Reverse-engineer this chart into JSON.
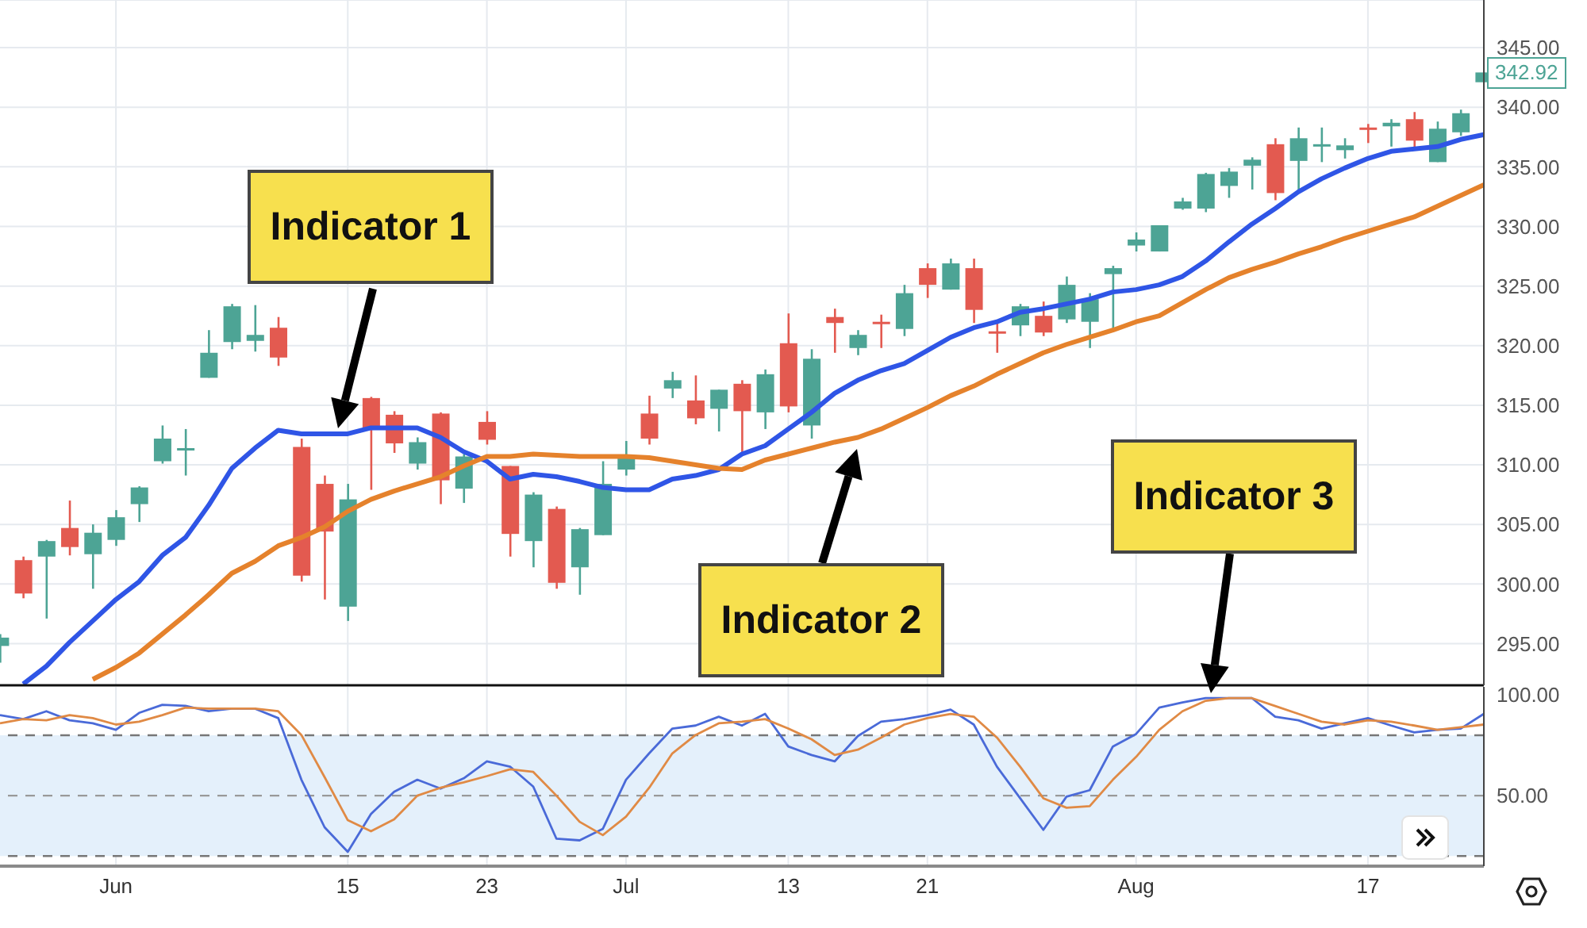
{
  "chart_data": [
    {
      "type": "candlestick",
      "categories": [
        null,
        null,
        null,
        null,
        null,
        null,
        null,
        null,
        null,
        null,
        null,
        null,
        null,
        null,
        null,
        null,
        null,
        null,
        null,
        null,
        null,
        null,
        null,
        null,
        null,
        null,
        null,
        null,
        null,
        null,
        null,
        null,
        null,
        null,
        null,
        null,
        null,
        null,
        null,
        null,
        null,
        null,
        null,
        null,
        null,
        null,
        null,
        null,
        null,
        null,
        null,
        null,
        null,
        null,
        null,
        null,
        null,
        null,
        null,
        null,
        null,
        null,
        null,
        null,
        null
      ],
      "ohlc": [
        [
          294.8,
          295.8,
          293.4,
          295.5
        ],
        [
          302.0,
          302.3,
          298.8,
          299.2
        ],
        [
          302.3,
          303.7,
          297.1,
          303.6
        ],
        [
          304.7,
          307.0,
          302.4,
          303.1
        ],
        [
          302.5,
          305.0,
          299.6,
          304.3
        ],
        [
          303.7,
          306.2,
          303.2,
          305.6
        ],
        [
          306.7,
          308.2,
          305.2,
          308.1
        ],
        [
          310.3,
          313.3,
          310.1,
          312.2
        ],
        [
          311.2,
          313.0,
          309.1,
          311.4
        ],
        [
          317.3,
          321.3,
          317.3,
          319.4
        ],
        [
          320.3,
          323.5,
          319.7,
          323.3
        ],
        [
          320.4,
          323.4,
          319.5,
          320.9
        ],
        [
          321.5,
          322.4,
          318.3,
          319.0
        ],
        [
          311.5,
          312.2,
          300.2,
          300.7
        ],
        [
          308.4,
          309.1,
          298.7,
          304.4
        ],
        [
          298.1,
          308.4,
          296.9,
          307.1
        ],
        [
          315.6,
          315.7,
          307.9,
          313.0
        ],
        [
          314.2,
          314.5,
          311.0,
          311.8
        ],
        [
          310.1,
          312.3,
          309.6,
          311.9
        ],
        [
          314.3,
          314.4,
          306.7,
          308.7
        ],
        [
          308.0,
          310.9,
          306.8,
          310.7
        ],
        [
          313.6,
          314.5,
          311.7,
          312.1
        ],
        [
          309.9,
          309.9,
          302.3,
          304.2
        ],
        [
          303.6,
          307.7,
          301.4,
          307.5
        ],
        [
          306.3,
          306.5,
          299.6,
          300.1
        ],
        [
          301.4,
          304.7,
          299.1,
          304.6
        ],
        [
          304.1,
          310.3,
          304.1,
          308.4
        ],
        [
          309.6,
          312.0,
          309.1,
          310.6
        ],
        [
          314.3,
          315.8,
          311.7,
          312.2
        ],
        [
          316.4,
          317.8,
          315.6,
          317.1
        ],
        [
          315.4,
          317.5,
          313.4,
          313.9
        ],
        [
          314.7,
          316.3,
          312.8,
          316.3
        ],
        [
          316.8,
          317.1,
          311.0,
          314.5
        ],
        [
          314.4,
          318.0,
          313.0,
          317.6
        ],
        [
          320.2,
          322.7,
          314.4,
          314.9
        ],
        [
          313.3,
          319.7,
          312.2,
          318.9
        ],
        [
          322.4,
          323.1,
          319.4,
          321.9
        ],
        [
          319.8,
          321.3,
          319.2,
          320.9
        ],
        [
          322.0,
          322.6,
          319.8,
          321.8
        ],
        [
          321.4,
          325.1,
          320.8,
          324.4
        ],
        [
          326.5,
          326.9,
          324.0,
          325.1
        ],
        [
          324.7,
          327.3,
          324.7,
          326.9
        ],
        [
          326.5,
          327.3,
          321.9,
          323.0
        ],
        [
          321.2,
          321.9,
          319.4,
          321.0
        ],
        [
          321.7,
          323.5,
          320.8,
          323.3
        ],
        [
          322.5,
          323.7,
          320.8,
          321.1
        ],
        [
          322.2,
          325.8,
          321.9,
          325.1
        ],
        [
          322.0,
          324.4,
          319.8,
          323.9
        ],
        [
          326.0,
          326.7,
          321.4,
          326.5
        ],
        [
          328.4,
          329.5,
          327.9,
          328.9
        ],
        [
          327.9,
          330.1,
          327.9,
          330.1
        ],
        [
          331.5,
          332.4,
          331.4,
          332.1
        ],
        [
          331.5,
          334.5,
          331.2,
          334.4
        ],
        [
          333.4,
          334.9,
          332.4,
          334.6
        ],
        [
          335.1,
          335.8,
          333.1,
          335.6
        ],
        [
          336.9,
          337.4,
          332.2,
          332.8
        ],
        [
          335.5,
          338.3,
          333.0,
          337.4
        ],
        [
          336.7,
          338.3,
          335.4,
          336.9
        ],
        [
          336.4,
          337.4,
          335.7,
          336.8
        ],
        [
          338.3,
          338.6,
          337.0,
          338.1
        ],
        [
          338.4,
          339.0,
          336.7,
          338.7
        ],
        [
          339.0,
          339.6,
          336.6,
          337.2
        ],
        [
          335.4,
          338.8,
          335.4,
          338.2
        ],
        [
          337.9,
          339.8,
          337.6,
          339.5
        ],
        [
          342.1,
          342.92,
          342.1,
          342.92
        ]
      ],
      "colors": [
        "#4da495",
        "#e35a50",
        "#4da495",
        "#e35a50",
        "#4da495",
        "#4da495",
        "#4da495",
        "#4da495",
        "#4da495",
        "#4da495",
        "#4da495",
        "#4da495",
        "#e35a50",
        "#e35a50",
        "#e35a50",
        "#4da495",
        "#e35a50",
        "#e35a50",
        "#4da495",
        "#e35a50",
        "#4da495",
        "#e35a50",
        "#e35a50",
        "#4da495",
        "#e35a50",
        "#4da495",
        "#4da495",
        "#4da495",
        "#e35a50",
        "#4da495",
        "#e35a50",
        "#4da495",
        "#e35a50",
        "#4da495",
        "#e35a50",
        "#4da495",
        "#e35a50",
        "#4da495",
        "#e35a50",
        "#4da495",
        "#e35a50",
        "#4da495",
        "#e35a50",
        "#e35a50",
        "#4da495",
        "#e35a50",
        "#4da495",
        "#4da495",
        "#4da495",
        "#4da495",
        "#4da495",
        "#4da495",
        "#4da495",
        "#4da495",
        "#4da495",
        "#e35a50",
        "#4da495",
        "#4da495",
        "#4da495",
        "#e35a50",
        "#4da495",
        "#e35a50",
        "#4da495",
        "#4da495",
        "#4da495"
      ],
      "series": [
        {
          "type": "line",
          "color": "#2f55e6",
          "values": [
            null,
            291.6,
            293.1,
            295.1,
            296.9,
            298.7,
            300.2,
            302.4,
            303.9,
            306.6,
            309.7,
            311.4,
            312.9,
            312.6,
            312.6,
            312.6,
            313.1,
            313.1,
            313.1,
            312.3,
            311.1,
            310.3,
            308.8,
            309.2,
            309.0,
            308.6,
            308.1,
            307.9,
            307.9,
            308.8,
            309.1,
            309.6,
            310.9,
            311.6,
            313.0,
            314.4,
            316.0,
            317.1,
            317.9,
            318.5,
            319.6,
            320.7,
            321.5,
            322.0,
            322.8,
            323.1,
            323.5,
            323.9,
            324.5,
            324.7,
            325.1,
            325.8,
            327.1,
            328.7,
            330.2,
            331.5,
            332.9,
            334.0,
            334.9,
            335.7,
            336.3,
            336.5,
            336.7,
            337.3,
            337.7
          ]
        },
        {
          "type": "line",
          "color": "#e5822c",
          "values": [
            null,
            null,
            null,
            null,
            292.0,
            293.0,
            294.2,
            295.8,
            297.4,
            299.1,
            300.9,
            301.9,
            303.2,
            303.9,
            304.8,
            306.1,
            307.1,
            307.8,
            308.4,
            309.0,
            309.9,
            310.7,
            310.7,
            310.9,
            310.8,
            310.7,
            310.7,
            310.7,
            310.6,
            310.3,
            310.0,
            309.7,
            309.6,
            310.4,
            310.9,
            311.4,
            311.9,
            312.3,
            313.0,
            313.9,
            314.8,
            315.8,
            316.6,
            317.6,
            318.5,
            319.4,
            320.1,
            320.7,
            321.3,
            322.0,
            322.5,
            323.6,
            324.7,
            325.7,
            326.4,
            327.0,
            327.7,
            328.3,
            329.0,
            329.6,
            330.2,
            330.8,
            331.7,
            332.6,
            333.5
          ]
        }
      ],
      "ylim": [
        291.5,
        349
      ],
      "yticks": [
        {
          "value": 295,
          "label": "295.00"
        },
        {
          "value": 300,
          "label": "300.00"
        },
        {
          "value": 305,
          "label": "305.00"
        },
        {
          "value": 310,
          "label": "310.00"
        },
        {
          "value": 315,
          "label": "315.00"
        },
        {
          "value": 320,
          "label": "320.00"
        },
        {
          "value": 325,
          "label": "325.00"
        },
        {
          "value": 330,
          "label": "330.00"
        },
        {
          "value": 335,
          "label": "335.00"
        },
        {
          "value": 340,
          "label": "340.00"
        },
        {
          "value": 345,
          "label": "345.00"
        }
      ],
      "grid": true,
      "tick_labels": "y",
      "annotations": [
        "Indicator 1",
        "Indicator 2",
        "Indicator 3",
        "342.92"
      ]
    },
    {
      "type": "line",
      "categories": [
        null,
        null,
        null,
        null,
        null,
        "Jun",
        null,
        null,
        null,
        null,
        null,
        null,
        null,
        null,
        null,
        "15",
        null,
        null,
        null,
        null,
        null,
        "23",
        null,
        null,
        null,
        null,
        null,
        "Jul",
        null,
        null,
        null,
        null,
        null,
        null,
        "13",
        null,
        null,
        null,
        null,
        null,
        "21",
        null,
        null,
        null,
        null,
        null,
        null,
        null,
        null,
        "Aug",
        null,
        null,
        null,
        null,
        null,
        null,
        null,
        null,
        null,
        "17",
        null,
        null,
        null,
        null,
        null
      ],
      "series": [
        {
          "color": "#4a6ad8",
          "values": [
            90.0,
            88.0,
            91.9,
            87.4,
            85.9,
            82.7,
            91.1,
            95.1,
            94.6,
            91.9,
            93.2,
            93.2,
            88.5,
            57.9,
            34.3,
            22.1,
            40.9,
            51.9,
            57.9,
            53.5,
            58.6,
            67.0,
            64.4,
            54.5,
            28.6,
            27.8,
            33.5,
            57.9,
            71.0,
            83.3,
            84.8,
            89.2,
            84.8,
            90.6,
            74.4,
            70.2,
            67.0,
            79.6,
            86.7,
            88.0,
            90.0,
            92.7,
            85.3,
            64.4,
            48.7,
            33.0,
            49.5,
            52.7,
            74.4,
            80.6,
            93.7,
            96.3,
            98.4,
            98.4,
            98.4,
            89.2,
            87.4,
            83.3,
            85.9,
            88.5,
            84.8,
            81.4,
            82.7,
            83.3,
            90.6
          ]
        },
        {
          "color": "#e08a45",
          "values": [
            85.9,
            88.0,
            87.4,
            90.0,
            88.5,
            85.3,
            86.7,
            90.0,
            93.7,
            93.2,
            93.2,
            93.2,
            91.9,
            80.1,
            59.2,
            37.8,
            32.3,
            38.2,
            50.0,
            53.9,
            56.6,
            59.7,
            63.1,
            61.8,
            50.0,
            37.0,
            30.4,
            39.6,
            53.9,
            71.0,
            80.1,
            85.9,
            86.7,
            88.0,
            83.3,
            78.0,
            70.2,
            72.8,
            78.8,
            85.3,
            88.5,
            90.6,
            89.2,
            78.8,
            64.4,
            48.7,
            44.0,
            44.8,
            57.9,
            69.2,
            82.7,
            91.9,
            97.1,
            98.4,
            98.4,
            94.5,
            90.6,
            86.7,
            85.3,
            87.4,
            86.7,
            84.8,
            82.7,
            84.0,
            85.3
          ]
        }
      ],
      "ylim": [
        15,
        104
      ],
      "yticks": [
        {
          "value": 50,
          "label": "50.00"
        },
        {
          "value": 100,
          "label": "100.00"
        }
      ],
      "grid": "x",
      "bands": [
        {
          "axis": "y",
          "from": 20,
          "to": 80,
          "color": "#e4f0fb"
        }
      ],
      "ref_lines": [
        {
          "axis": "y",
          "value": 80,
          "color": "#777777",
          "line_style": "dashed"
        },
        {
          "axis": "y",
          "value": 50,
          "color": "#999999",
          "line_style": "dashed"
        },
        {
          "axis": "y",
          "value": 20,
          "color": "#777777",
          "line_style": "dashed"
        }
      ]
    }
  ]
}
